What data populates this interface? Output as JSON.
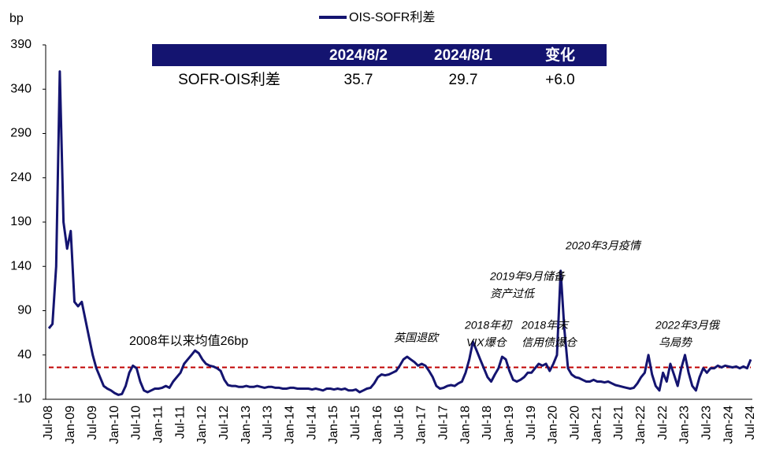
{
  "chart_data": {
    "type": "line",
    "y_unit": "bp",
    "categories": [
      "Jul-08",
      null,
      null,
      null,
      null,
      null,
      "Jan-09",
      null,
      null,
      null,
      null,
      null,
      "Jul-09",
      null,
      null,
      null,
      null,
      null,
      "Jan-10",
      null,
      null,
      null,
      null,
      null,
      "Jul-10",
      null,
      null,
      null,
      null,
      null,
      "Jan-11",
      null,
      null,
      null,
      null,
      null,
      "Jul-11",
      null,
      null,
      null,
      null,
      null,
      "Jan-12",
      null,
      null,
      null,
      null,
      null,
      "Jul-12",
      null,
      null,
      null,
      null,
      null,
      "Jan-13",
      null,
      null,
      null,
      null,
      null,
      "Jul-13",
      null,
      null,
      null,
      null,
      null,
      "Jan-14",
      null,
      null,
      null,
      null,
      null,
      "Jul-14",
      null,
      null,
      null,
      null,
      null,
      "Jan-15",
      null,
      null,
      null,
      null,
      null,
      "Jul-15",
      null,
      null,
      null,
      null,
      null,
      "Jan-16",
      null,
      null,
      null,
      null,
      null,
      "Jul-16",
      null,
      null,
      null,
      null,
      null,
      "Jan-17",
      null,
      null,
      null,
      null,
      null,
      "Jul-17",
      null,
      null,
      null,
      null,
      null,
      "Jan-18",
      null,
      null,
      null,
      null,
      null,
      "Jul-18",
      null,
      null,
      null,
      null,
      null,
      "Jan-19",
      null,
      null,
      null,
      null,
      null,
      "Jul-19",
      null,
      null,
      null,
      null,
      null,
      "Jan-20",
      null,
      null,
      null,
      null,
      null,
      "Jul-20",
      null,
      null,
      null,
      null,
      null,
      "Jan-21",
      null,
      null,
      null,
      null,
      null,
      "Jul-21",
      null,
      null,
      null,
      null,
      null,
      "Jan-22",
      null,
      null,
      null,
      null,
      null,
      "Jul-22",
      null,
      null,
      null,
      null,
      null,
      "Jan-23",
      null,
      null,
      null,
      null,
      null,
      "Jul-23",
      null,
      null,
      null,
      null,
      null,
      "Jan-24",
      null,
      null,
      null,
      null,
      null,
      "Jul-24"
    ],
    "series": [
      {
        "name": "OIS-SOFR利差",
        "color": "#141470",
        "values": [
          70,
          75,
          140,
          360,
          190,
          160,
          180,
          100,
          95,
          100,
          80,
          60,
          40,
          25,
          15,
          5,
          2,
          0,
          -3,
          -5,
          -4,
          5,
          20,
          28,
          25,
          10,
          0,
          -2,
          0,
          2,
          2,
          3,
          5,
          3,
          10,
          15,
          20,
          30,
          35,
          40,
          45,
          42,
          35,
          30,
          28,
          27,
          25,
          22,
          12,
          6,
          5,
          5,
          4,
          4,
          5,
          4,
          4,
          5,
          4,
          3,
          4,
          4,
          3,
          3,
          2,
          2,
          3,
          3,
          2,
          2,
          2,
          2,
          1,
          2,
          1,
          0,
          2,
          2,
          1,
          2,
          1,
          2,
          0,
          0,
          1,
          -2,
          0,
          2,
          3,
          8,
          15,
          18,
          17,
          18,
          20,
          22,
          28,
          35,
          38,
          35,
          32,
          28,
          30,
          28,
          22,
          15,
          5,
          2,
          3,
          5,
          6,
          5,
          8,
          10,
          20,
          35,
          55,
          45,
          35,
          25,
          15,
          10,
          18,
          25,
          38,
          35,
          22,
          12,
          10,
          12,
          15,
          20,
          20,
          25,
          30,
          28,
          30,
          22,
          30,
          40,
          135,
          70,
          25,
          18,
          15,
          14,
          12,
          10,
          10,
          12,
          10,
          10,
          9,
          10,
          8,
          6,
          5,
          4,
          3,
          2,
          3,
          8,
          15,
          20,
          40,
          18,
          5,
          0,
          20,
          10,
          30,
          18,
          5,
          25,
          40,
          20,
          5,
          0,
          15,
          25,
          20,
          25,
          25,
          28,
          26,
          28,
          27,
          26,
          27,
          25,
          27,
          25,
          35
        ]
      }
    ],
    "ylim": [
      -10,
      390
    ],
    "yticks": [
      -10,
      40,
      90,
      140,
      190,
      240,
      290,
      340,
      390
    ],
    "mean": 26,
    "mean_color": "#c00000",
    "mean_label": "2008年以来均值26bp",
    "annotations": [
      "英国退欧",
      "2018年初",
      "VIX爆仓",
      "2018年末",
      "信用债爆仓",
      "2019年9月储备",
      "资产过低",
      "2020年3月疫情",
      "2022年3月俄",
      "乌局势"
    ],
    "table": {
      "header": [
        "2024/8/2",
        "2024/8/1",
        "变化"
      ],
      "row_label": "SOFR-OIS利差",
      "row": [
        "35.7",
        "29.7",
        "+6.0"
      ]
    }
  }
}
